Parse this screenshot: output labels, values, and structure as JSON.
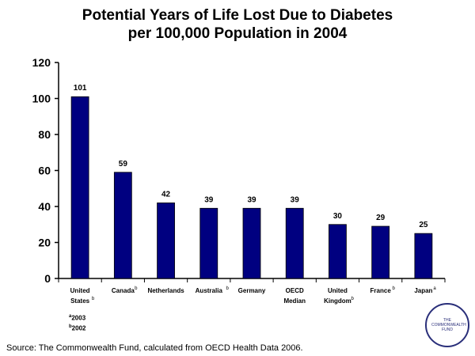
{
  "title_line1": "Potential Years of Life Lost Due to Diabetes",
  "title_line2": "per 100,000 Population in 2004",
  "notes": {
    "a": "2003",
    "b": "2002",
    "a_mark": "a",
    "b_mark": "b"
  },
  "source": "Source: The Commonwealth Fund, calculated from OECD Health Data 2006.",
  "logo_text": "THE COMMONWEALTH FUND",
  "chart_data": {
    "type": "bar",
    "title": "Potential Years of Life Lost Due to Diabetes per 100,000 Population in 2004",
    "categories": [
      {
        "line1": "United",
        "line2": "States",
        "sup": "b"
      },
      {
        "line1": "Canada",
        "line2": "",
        "sup": "b"
      },
      {
        "line1": "Netherlands",
        "line2": "",
        "sup": ""
      },
      {
        "line1": "Australia",
        "line2": "",
        "sup": "b"
      },
      {
        "line1": "Germany",
        "line2": "",
        "sup": ""
      },
      {
        "line1": "OECD",
        "line2": "Median",
        "sup": ""
      },
      {
        "line1": "United",
        "line2": "Kingdom",
        "sup": "b"
      },
      {
        "line1": "France",
        "line2": "",
        "sup": "b"
      },
      {
        "line1": "Japan",
        "line2": "",
        "sup": "a"
      }
    ],
    "values": [
      101,
      59,
      42,
      39,
      39,
      39,
      30,
      29,
      25
    ],
    "ylim": [
      0,
      120
    ],
    "yticks": [
      0,
      20,
      40,
      60,
      80,
      100,
      120
    ],
    "bar_color": "#000080",
    "grid": false,
    "legend": "none"
  }
}
